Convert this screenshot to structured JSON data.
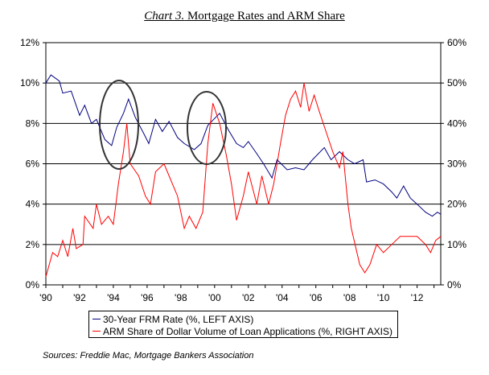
{
  "chart_data": {
    "type": "line",
    "title_prefix": "Chart 3.",
    "title": "Mortgage Rates and ARM Share",
    "xlim": [
      1990,
      2013.4
    ],
    "x_ticks": [
      "'90",
      "'92",
      "'94",
      "'96",
      "'98",
      "'00",
      "'02",
      "'04",
      "'06",
      "'08",
      "'10",
      "'12"
    ],
    "x_tick_values": [
      1990,
      1992,
      1994,
      1996,
      1998,
      2000,
      2002,
      2004,
      2006,
      2008,
      2010,
      2012
    ],
    "y_left": {
      "lim": [
        0,
        12
      ],
      "ticks": [
        "0%",
        "2%",
        "4%",
        "6%",
        "8%",
        "10%",
        "12%"
      ]
    },
    "y_right": {
      "lim": [
        0,
        60
      ],
      "ticks": [
        "0%",
        "10%",
        "20%",
        "30%",
        "40%",
        "50%",
        "60%"
      ]
    },
    "grid": true,
    "legend_position": "bottom",
    "series": [
      {
        "name": "30-Year FRM Rate (%, LEFT AXIS)",
        "axis": "left",
        "color": "#000080",
        "x": [
          1990,
          1990.3,
          1990.8,
          1991,
          1991.5,
          1992,
          1992.3,
          1992.7,
          1993,
          1993.5,
          1993.9,
          1994.2,
          1994.6,
          1994.9,
          1995.3,
          1995.8,
          1996.1,
          1996.5,
          1996.9,
          1997.3,
          1997.8,
          1998.2,
          1998.8,
          1999.2,
          1999.6,
          2000.3,
          2000.8,
          2001.3,
          2001.7,
          2002,
          2002.5,
          2002.9,
          2003.4,
          2003.7,
          2004.3,
          2004.8,
          2005.3,
          2005.8,
          2006.5,
          2006.9,
          2007.4,
          2007.9,
          2008.3,
          2008.8,
          2009,
          2009.5,
          2010,
          2010.5,
          2010.8,
          2011.2,
          2011.6,
          2012,
          2012.5,
          2012.9,
          2013.2,
          2013.4
        ],
        "y": [
          10.0,
          10.4,
          10.1,
          9.5,
          9.6,
          8.4,
          8.9,
          8.0,
          8.2,
          7.2,
          6.9,
          7.8,
          8.5,
          9.2,
          8.3,
          7.5,
          7.0,
          8.2,
          7.6,
          8.1,
          7.3,
          7.0,
          6.7,
          7.0,
          7.9,
          8.5,
          7.7,
          7.0,
          6.8,
          7.1,
          6.5,
          6.0,
          5.3,
          6.2,
          5.7,
          5.8,
          5.7,
          6.2,
          6.8,
          6.2,
          6.6,
          6.2,
          6.0,
          6.2,
          5.1,
          5.2,
          5.0,
          4.6,
          4.3,
          4.9,
          4.3,
          4.0,
          3.6,
          3.4,
          3.6,
          3.5
        ]
      },
      {
        "name": "ARM Share of Dollar Volume of Loan Applications (%, RIGHT AXIS)",
        "axis": "right",
        "color": "#ff0000",
        "x": [
          1990,
          1990.4,
          1990.7,
          1991,
          1991.3,
          1991.6,
          1991.8,
          1992.2,
          1992.3,
          1992.8,
          1993,
          1993.3,
          1993.7,
          1994,
          1994.3,
          1994.6,
          1994.8,
          1995,
          1995.5,
          1995.9,
          1996.2,
          1996.5,
          1997,
          1997.3,
          1997.8,
          1998.2,
          1998.5,
          1998.9,
          1999.3,
          1999.6,
          1999.9,
          2000.3,
          2000.7,
          2001,
          2001.3,
          2001.7,
          2002,
          2002.5,
          2002.8,
          2003.2,
          2003.5,
          2003.9,
          2004.2,
          2004.5,
          2004.8,
          2005.1,
          2005.3,
          2005.6,
          2005.9,
          2006.2,
          2006.6,
          2007,
          2007.4,
          2007.6,
          2007.9,
          2008.1,
          2008.6,
          2008.9,
          2009.2,
          2009.6,
          2010,
          2010.5,
          2011,
          2011.5,
          2012,
          2012.5,
          2012.8,
          2013.1,
          2013.4
        ],
        "y": [
          2,
          8,
          7,
          11,
          7,
          14,
          9,
          10,
          17,
          14,
          20,
          15,
          17,
          15,
          25,
          33,
          40,
          30,
          27,
          22,
          20,
          28,
          30,
          27,
          22,
          14,
          17,
          14,
          18,
          35,
          45,
          40,
          32,
          25,
          16,
          22,
          28,
          20,
          27,
          20,
          25,
          35,
          42,
          46,
          48,
          44,
          50,
          43,
          47,
          43,
          38,
          33,
          29,
          33,
          20,
          14,
          5,
          3,
          5,
          10,
          8,
          10,
          12,
          12,
          12,
          10,
          8,
          11,
          12
        ]
      }
    ],
    "annotations": [
      "ellipse around 1994-95",
      "ellipse around 1999-2000"
    ]
  },
  "source": "Sources: Freddie Mac, Mortgage Bankers Association"
}
